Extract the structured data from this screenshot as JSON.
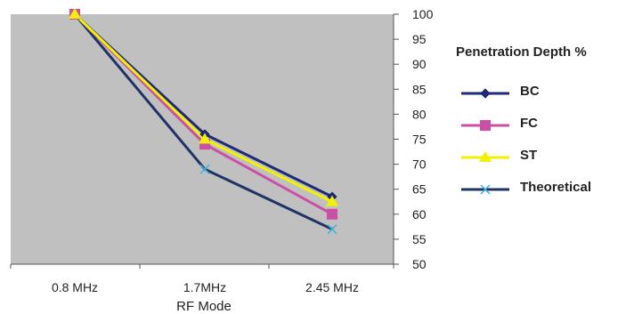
{
  "chart_data": {
    "type": "line",
    "title": "",
    "xlabel": "RF Mode",
    "ylabel": "",
    "categories": [
      "0.8 MHz",
      "1.7MHz",
      "2.45 MHz"
    ],
    "ylim": [
      50,
      100
    ],
    "yticks": [
      "50",
      "55",
      "60",
      "65",
      "70",
      "75",
      "80",
      "85",
      "90",
      "95",
      "100"
    ],
    "y_axis_side": "right",
    "grid": false,
    "plot_background": "#c0c0c0",
    "legend_title": "Penetration Depth %",
    "legend_position": "right",
    "series": [
      {
        "name": "BC",
        "values": [
          100,
          76,
          63.5
        ],
        "color": "#1f2a7a",
        "marker": "diamond"
      },
      {
        "name": "FC",
        "values": [
          100,
          74,
          60
        ],
        "color": "#cc4fa6",
        "marker": "square"
      },
      {
        "name": "ST",
        "values": [
          100,
          75,
          62.5
        ],
        "color": "#f2f200",
        "marker": "triangle"
      },
      {
        "name": "Theoretical",
        "values": [
          100,
          69,
          57
        ],
        "color": "#1f3366",
        "marker": "x",
        "marker_color": "#3cb4dc"
      }
    ]
  }
}
